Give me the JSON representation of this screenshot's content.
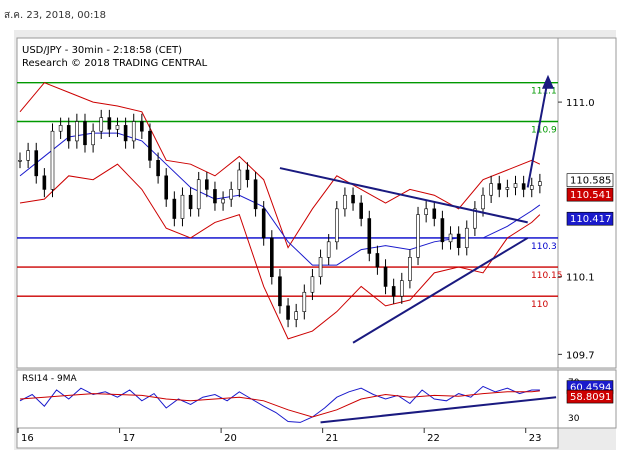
{
  "header": {
    "timestamp": "ส.ค. 23, 2018, 00:18"
  },
  "chart_data": [
    {
      "type": "line",
      "title": "USD/JPY - 30min - 2:18:58 (CET)",
      "subtitle": "Research © 2018 TRADING CENTRAL",
      "instrument": "USD/JPY",
      "ylim": [
        109.64,
        111.32
      ],
      "y_ticks": [
        "111.0",
        "110.1",
        "109.7"
      ],
      "y_tick_values": [
        111.0,
        110.1,
        109.7
      ],
      "x_ticks": [
        {
          "label": "16",
          "x": 0.5
        },
        {
          "label": "17",
          "x": 25.5
        },
        {
          "label": "20",
          "x": 50.5
        },
        {
          "label": "21",
          "x": 75.5
        },
        {
          "label": "22",
          "x": 100.5
        },
        {
          "label": "23",
          "x": 125.5
        }
      ],
      "x_range": [
        0,
        130
      ],
      "grid": false,
      "series": [
        {
          "kind": "candlestick_close",
          "color": "#000000",
          "x": [
            0,
            2,
            4,
            6,
            8,
            10,
            12,
            14,
            16,
            18,
            20,
            22,
            24,
            26,
            28,
            30,
            32,
            34,
            36,
            38,
            40,
            42,
            44,
            46,
            48,
            50,
            52,
            54,
            56,
            58,
            60,
            62,
            64,
            66,
            68,
            70,
            72,
            74,
            76,
            78,
            80,
            82,
            84,
            86,
            88,
            90,
            92,
            94,
            96,
            98,
            100,
            102,
            104,
            106,
            108,
            110,
            112,
            114,
            116,
            118,
            120,
            122,
            124,
            126,
            128
          ],
          "values": [
            110.7,
            110.75,
            110.62,
            110.55,
            110.85,
            110.88,
            110.8,
            110.9,
            110.78,
            110.85,
            110.92,
            110.86,
            110.88,
            110.8,
            110.9,
            110.85,
            110.7,
            110.62,
            110.5,
            110.4,
            110.52,
            110.45,
            110.6,
            110.55,
            110.48,
            110.5,
            110.55,
            110.65,
            110.6,
            110.45,
            110.3,
            110.1,
            109.95,
            109.88,
            109.92,
            110.02,
            110.1,
            110.2,
            110.28,
            110.45,
            110.52,
            110.48,
            110.4,
            110.22,
            110.15,
            110.05,
            110.0,
            110.08,
            110.2,
            110.42,
            110.45,
            110.4,
            110.28,
            110.32,
            110.25,
            110.35,
            110.45,
            110.52,
            110.58,
            110.55,
            110.56,
            110.58,
            110.55,
            110.57,
            110.59
          ]
        },
        {
          "kind": "bollinger_upper",
          "color": "#cc0000",
          "x": [
            0,
            6,
            12,
            18,
            24,
            30,
            36,
            42,
            48,
            54,
            60,
            66,
            72,
            78,
            84,
            90,
            96,
            102,
            108,
            114,
            120,
            126,
            128
          ],
          "values": [
            110.95,
            111.1,
            111.05,
            111.0,
            110.98,
            110.95,
            110.7,
            110.68,
            110.62,
            110.72,
            110.6,
            110.25,
            110.45,
            110.62,
            110.55,
            110.48,
            110.55,
            110.52,
            110.45,
            110.6,
            110.65,
            110.7,
            110.68
          ]
        },
        {
          "kind": "bollinger_lower",
          "color": "#cc0000",
          "x": [
            0,
            6,
            12,
            18,
            24,
            30,
            36,
            42,
            48,
            54,
            60,
            66,
            72,
            78,
            84,
            90,
            96,
            102,
            108,
            114,
            120,
            126,
            128
          ],
          "values": [
            110.48,
            110.5,
            110.62,
            110.6,
            110.68,
            110.55,
            110.35,
            110.3,
            110.38,
            110.42,
            110.05,
            109.78,
            109.82,
            109.92,
            110.05,
            109.95,
            109.98,
            110.12,
            110.15,
            110.12,
            110.3,
            110.38,
            110.42
          ]
        },
        {
          "kind": "moving_average",
          "color": "#1a1acc",
          "x": [
            0,
            6,
            12,
            18,
            24,
            30,
            36,
            42,
            48,
            54,
            60,
            66,
            72,
            78,
            84,
            90,
            96,
            102,
            108,
            114,
            120,
            126,
            128
          ],
          "values": [
            110.62,
            110.72,
            110.82,
            110.84,
            110.84,
            110.8,
            110.68,
            110.56,
            110.5,
            110.52,
            110.46,
            110.28,
            110.16,
            110.16,
            110.24,
            110.26,
            110.24,
            110.28,
            110.3,
            110.3,
            110.36,
            110.44,
            110.47
          ]
        },
        {
          "kind": "trendline_falling",
          "color": "#1a1a80",
          "x": [
            64,
            125
          ],
          "values": [
            110.66,
            110.38
          ]
        },
        {
          "kind": "trendline_rising",
          "color": "#1a1a80",
          "x": [
            82,
            125
          ],
          "values": [
            109.76,
            110.3
          ]
        },
        {
          "kind": "projection_arrow",
          "color": "#1a1a80",
          "x": [
            125,
            130
          ],
          "values": [
            110.56,
            111.12
          ]
        }
      ],
      "levels": [
        {
          "value": 111.1,
          "label": "111.1",
          "color": "#009900"
        },
        {
          "value": 110.9,
          "label": "110.9",
          "color": "#009900"
        },
        {
          "value": 110.3,
          "label": "110.3",
          "color": "#0000cc"
        },
        {
          "value": 110.15,
          "label": "110.15",
          "color": "#cc0000"
        },
        {
          "value": 110,
          "label": "110",
          "color": "#cc0000"
        }
      ],
      "price_tags": [
        {
          "value": 110.585,
          "label": "110.585",
          "bg": "#ffffff",
          "fg": "#000000"
        },
        {
          "value": 110.541,
          "label": "110.541",
          "bg": "#cc0000",
          "fg": "#ffffff"
        },
        {
          "value": 110.417,
          "label": "110.417",
          "bg": "#1a1acc",
          "fg": "#ffffff"
        }
      ]
    },
    {
      "type": "line",
      "title": "RSI14 - 9MA",
      "ylim": [
        20,
        80
      ],
      "y_ticks": [
        "70",
        "30"
      ],
      "y_tick_values": [
        70,
        30
      ],
      "series": [
        {
          "kind": "rsi",
          "color": "#1a1acc",
          "x": [
            0,
            3,
            6,
            9,
            12,
            15,
            18,
            21,
            24,
            27,
            30,
            33,
            36,
            39,
            42,
            45,
            48,
            51,
            54,
            57,
            60,
            63,
            66,
            69,
            72,
            75,
            78,
            81,
            84,
            87,
            90,
            93,
            96,
            99,
            102,
            105,
            108,
            111,
            114,
            117,
            120,
            123,
            126,
            128
          ],
          "values": [
            48,
            55,
            42,
            60,
            50,
            62,
            55,
            58,
            52,
            60,
            48,
            56,
            40,
            50,
            44,
            52,
            55,
            48,
            58,
            50,
            42,
            35,
            25,
            24,
            30,
            40,
            52,
            58,
            62,
            55,
            50,
            54,
            45,
            60,
            50,
            48,
            56,
            52,
            64,
            58,
            62,
            56,
            60,
            60
          ]
        },
        {
          "kind": "rsi_ma",
          "color": "#cc0000",
          "x": [
            0,
            6,
            12,
            18,
            24,
            30,
            36,
            42,
            48,
            54,
            60,
            66,
            72,
            78,
            84,
            90,
            96,
            102,
            108,
            114,
            120,
            126,
            128
          ],
          "values": [
            50,
            52,
            54,
            56,
            55,
            54,
            50,
            48,
            50,
            52,
            48,
            38,
            30,
            38,
            50,
            55,
            52,
            54,
            53,
            56,
            58,
            58,
            59
          ]
        },
        {
          "kind": "trendline",
          "color": "#1a1a80",
          "x": [
            74,
            132
          ],
          "values": [
            24,
            52
          ]
        }
      ],
      "price_tags": [
        {
          "value": 60.4594,
          "label": "60.4594",
          "bg": "#1a1acc",
          "fg": "#ffffff"
        },
        {
          "value": 58.8091,
          "label": "58.8091",
          "bg": "#cc0000",
          "fg": "#ffffff"
        }
      ]
    }
  ]
}
